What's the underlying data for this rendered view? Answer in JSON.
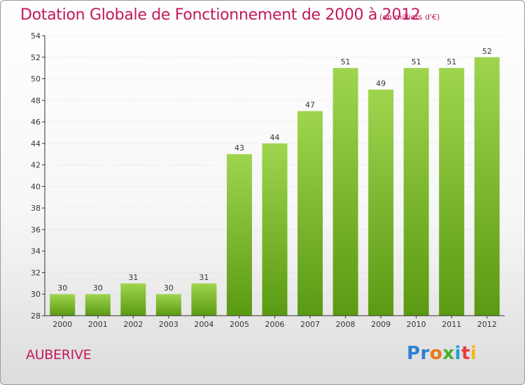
{
  "title": "Dotation Globale de Fonctionnement de 2000 à 2012",
  "subtitle": "(en milliers d'€)",
  "place": "AUBERIVE",
  "logo": [
    "Pr",
    "o",
    "x",
    "i",
    "t",
    "i"
  ],
  "colors": {
    "title": "#c2185b",
    "bar_top": "#9fd54e",
    "bar_bottom": "#5a9a12",
    "axis": "#333333",
    "grid": "#cfcfcf"
  },
  "chart_data": {
    "type": "bar",
    "categories": [
      "2000",
      "2001",
      "2002",
      "2003",
      "2004",
      "2005",
      "2006",
      "2007",
      "2008",
      "2009",
      "2010",
      "2011",
      "2012"
    ],
    "values": [
      30,
      30,
      31,
      30,
      31,
      43,
      44,
      47,
      51,
      49,
      51,
      51,
      52
    ],
    "title": "Dotation Globale de Fonctionnement de 2000 à 2012",
    "subtitle": "(en milliers d'€)",
    "xlabel": "",
    "ylabel": "",
    "ylim": [
      28,
      54
    ],
    "yticks": [
      28,
      30,
      32,
      34,
      36,
      38,
      40,
      42,
      44,
      46,
      48,
      50,
      52,
      54
    ],
    "grid": true,
    "legend": "none"
  }
}
